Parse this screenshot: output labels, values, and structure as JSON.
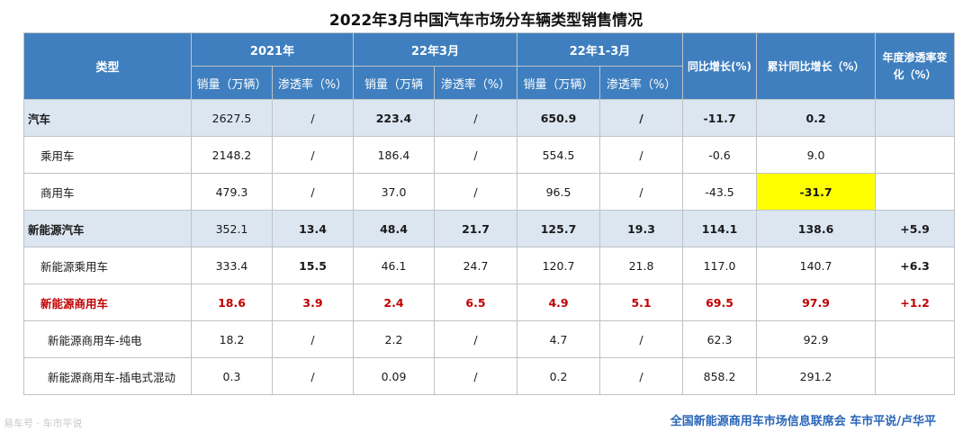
{
  "title": "2022年3月中国汽车市场分车辆类型销售情况",
  "header": {
    "type": "类型",
    "g2021": "2021年",
    "g2203": "22年3月",
    "g2213": "22年1-3月",
    "yoy": "同比增长(%)",
    "cum_yoy": "累计同比增长（%）",
    "pen_change": "年度渗透率变化（%）",
    "sales": "销量（万辆）",
    "sales_short": "销量（万辆",
    "pen": "渗透率（%）"
  },
  "rows": [
    {
      "label": "汽车",
      "c1": "2627.5",
      "c2": "/",
      "c3": "223.4",
      "c4": "/",
      "c5": "650.9",
      "c6": "/",
      "c7": "-11.7",
      "c8": "0.2",
      "c9": ""
    },
    {
      "label": "乘用车",
      "c1": "2148.2",
      "c2": "/",
      "c3": "186.4",
      "c4": "/",
      "c5": "554.5",
      "c6": "/",
      "c7": "-0.6",
      "c8": "9.0",
      "c9": ""
    },
    {
      "label": "商用车",
      "c1": "479.3",
      "c2": "/",
      "c3": "37.0",
      "c4": "/",
      "c5": "96.5",
      "c6": "/",
      "c7": "-43.5",
      "c8": "-31.7",
      "c9": ""
    },
    {
      "label": "新能源汽车",
      "c1": "352.1",
      "c2": "13.4",
      "c3": "48.4",
      "c4": "21.7",
      "c5": "125.7",
      "c6": "19.3",
      "c7": "114.1",
      "c8": "138.6",
      "c9": "+5.9"
    },
    {
      "label": "新能源乘用车",
      "c1": "333.4",
      "c2": "15.5",
      "c3": "46.1",
      "c4": "24.7",
      "c5": "120.7",
      "c6": "21.8",
      "c7": "117.0",
      "c8": "140.7",
      "c9": "+6.3"
    },
    {
      "label": "新能源商用车",
      "c1": "18.6",
      "c2": "3.9",
      "c3": "2.4",
      "c4": "6.5",
      "c5": "4.9",
      "c6": "5.1",
      "c7": "69.5",
      "c8": "97.9",
      "c9": "+1.2"
    },
    {
      "label": "新能源商用车-纯电",
      "c1": "18.2",
      "c2": "/",
      "c3": "2.2",
      "c4": "/",
      "c5": "4.7",
      "c6": "/",
      "c7": "62.3",
      "c8": "92.9",
      "c9": ""
    },
    {
      "label": "新能源商用车-插电式混动",
      "c1": "0.3",
      "c2": "/",
      "c3": "0.09",
      "c4": "/",
      "c5": "0.2",
      "c6": "/",
      "c7": "858.2",
      "c8": "291.2",
      "c9": ""
    }
  ],
  "footer": "全国新能源商用车市场信息联席会  车市平说/卢华平",
  "watermark": "易车号 · 车市平说",
  "colors": {
    "header_bg": "#3f7fbf",
    "highlight_row": "#dbe6f1",
    "yellow": "#ffff00",
    "red": "#c00000",
    "footer": "#2a66b8"
  }
}
